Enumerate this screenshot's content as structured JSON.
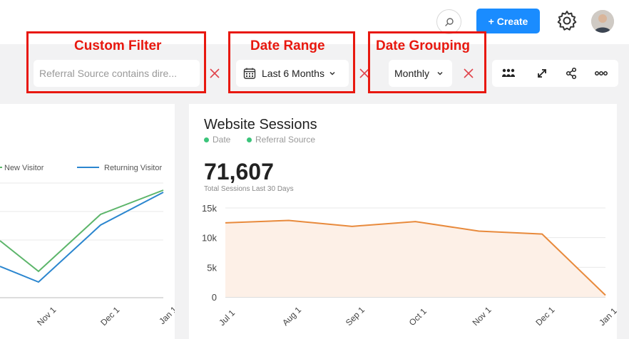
{
  "header": {
    "create_label": "+ Create",
    "icons": [
      "search-icon",
      "gear-icon",
      "avatar"
    ],
    "accent": "#1a8cff"
  },
  "filters": {
    "custom_filter": {
      "annotation": "Custom Filter",
      "value": "Referral Source contains dire..."
    },
    "date_range": {
      "annotation": "Date Range",
      "value": "Last 6 Months"
    },
    "date_grouping": {
      "annotation": "Date Grouping",
      "value": "Monthly"
    }
  },
  "toolbar_icons": [
    "team-icon",
    "expand-icon",
    "share-icon",
    "more-icon"
  ],
  "left_chart": {
    "legend": [
      "New Visitor",
      "Returning Visitor"
    ],
    "x_ticks": [
      "Nov 1",
      "Dec 1",
      "Jan 1"
    ],
    "colors": {
      "new": "#5cb56a",
      "returning": "#2b86cf"
    }
  },
  "website_sessions": {
    "title": "Website Sessions",
    "tags": [
      "Date",
      "Referral Source"
    ],
    "total": "71,607",
    "total_label": "Total Sessions Last 30 Days"
  },
  "chart_data": {
    "type": "area",
    "x": [
      "Jul 1",
      "Aug 1",
      "Sep 1",
      "Oct 1",
      "Nov 1",
      "Dec 1",
      "Jan 1"
    ],
    "values": [
      12500,
      12900,
      11900,
      12700,
      11100,
      10600,
      300
    ],
    "y_ticks": [
      "15k",
      "10k",
      "5k",
      "0"
    ],
    "ylim": [
      0,
      15000
    ],
    "line_color": "#e88a3c",
    "fill_color": "#fdf0e7"
  }
}
